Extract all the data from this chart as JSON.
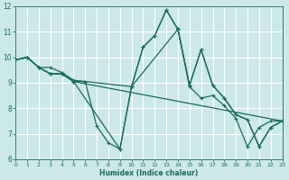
{
  "xlabel": "Humidex (Indice chaleur)",
  "xlim": [
    0,
    23
  ],
  "ylim": [
    6,
    12
  ],
  "yticks": [
    6,
    7,
    8,
    9,
    10,
    11,
    12
  ],
  "xticks": [
    0,
    1,
    2,
    3,
    4,
    5,
    6,
    7,
    8,
    9,
    10,
    11,
    12,
    13,
    14,
    15,
    16,
    17,
    18,
    19,
    20,
    21,
    22,
    23
  ],
  "bg_color": "#cce8e8",
  "grid_color": "#b8d8d8",
  "line_color": "#1a6b5a",
  "lines": [
    {
      "x": [
        0,
        1,
        2,
        3,
        4,
        5,
        10,
        11,
        12,
        13,
        14,
        15,
        16,
        17,
        18,
        19,
        20,
        21,
        22,
        23
      ],
      "y": [
        9.9,
        10.0,
        9.6,
        9.6,
        9.4,
        9.1,
        8.85,
        10.4,
        10.85,
        11.85,
        11.1,
        8.9,
        10.3,
        8.9,
        8.4,
        7.75,
        7.55,
        6.5,
        7.25,
        7.5
      ]
    },
    {
      "x": [
        0,
        1,
        2,
        3,
        4,
        5,
        6,
        7,
        8,
        9,
        10,
        14,
        15,
        16,
        17,
        18,
        19,
        20,
        21,
        22,
        23
      ],
      "y": [
        9.9,
        10.0,
        9.6,
        9.35,
        9.35,
        9.05,
        9.05,
        7.3,
        6.65,
        6.4,
        8.85,
        11.1,
        8.85,
        8.4,
        8.5,
        8.1,
        7.6,
        6.5,
        7.25,
        7.5,
        7.5
      ]
    },
    {
      "x": [
        0,
        1,
        2,
        3,
        4,
        5,
        23
      ],
      "y": [
        9.9,
        10.0,
        9.6,
        9.35,
        9.35,
        9.05,
        7.5
      ]
    },
    {
      "x": [
        0,
        1,
        2,
        3,
        4,
        5,
        9,
        10,
        11,
        12,
        13,
        14,
        15,
        16,
        17,
        18,
        19,
        20,
        21,
        22,
        23
      ],
      "y": [
        9.9,
        10.0,
        9.6,
        9.35,
        9.35,
        9.05,
        6.4,
        8.85,
        10.4,
        10.85,
        11.85,
        11.1,
        8.9,
        10.3,
        8.9,
        8.4,
        7.75,
        7.55,
        6.5,
        7.25,
        7.5
      ]
    }
  ]
}
